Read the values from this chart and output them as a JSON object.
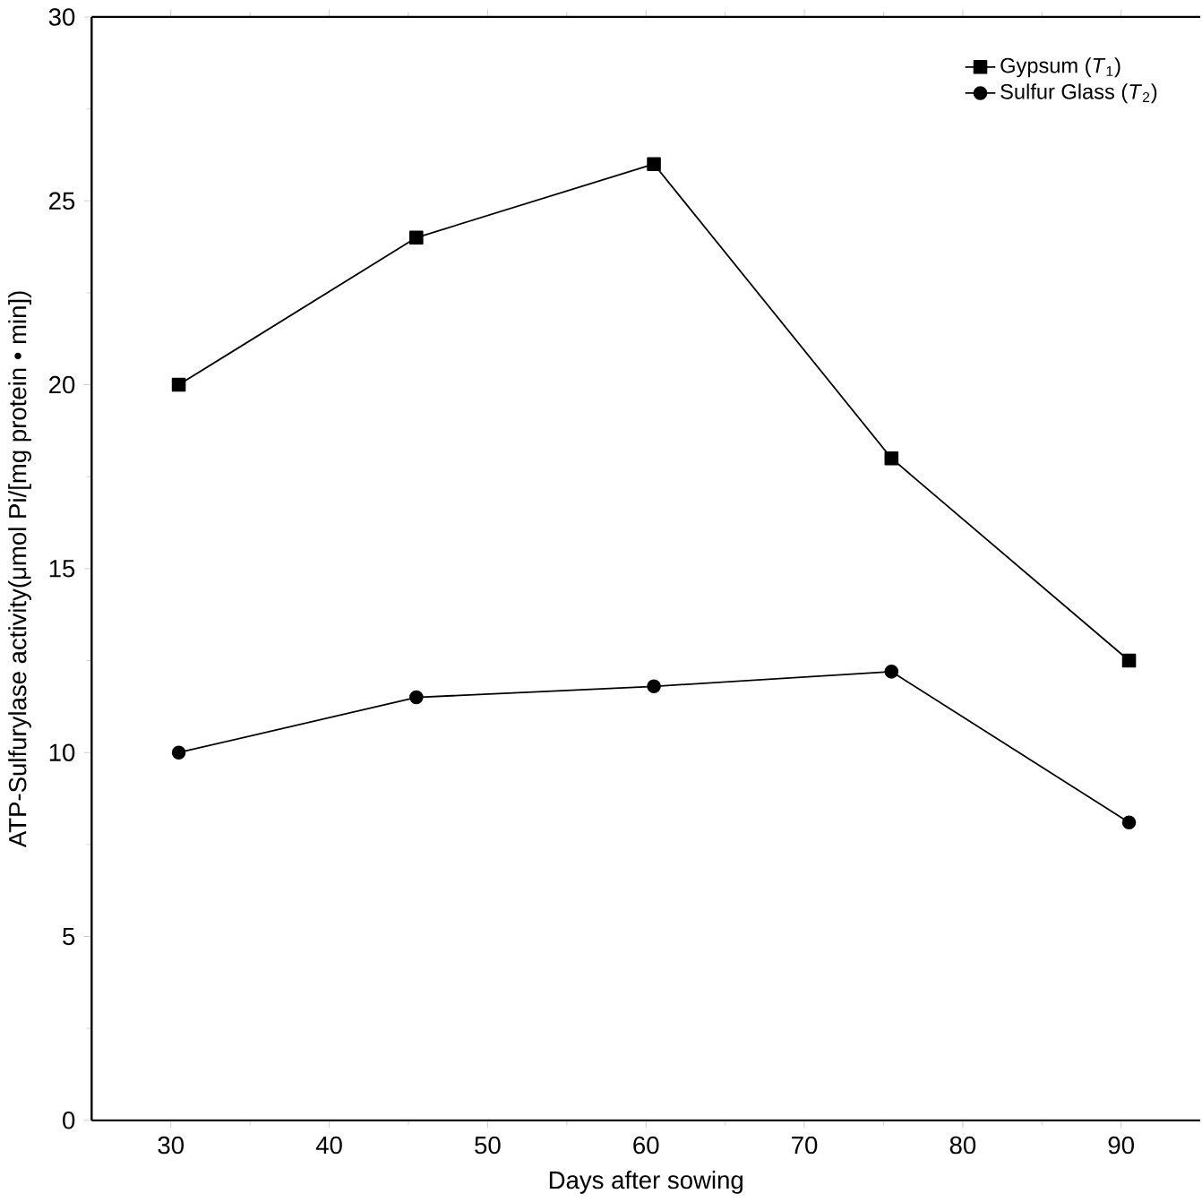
{
  "chart_data": {
    "type": "line",
    "xlabel": "Days after sowing",
    "ylabel": "ATP-Sulfurylase activity(μmol Pi/[mg protein • min])",
    "x": [
      30.5,
      45.5,
      60.5,
      75.5,
      90.5
    ],
    "series": [
      {
        "name": "Gypsum (*T*$_{1}$)",
        "color": "#000000",
        "marker": "square",
        "values": [
          20,
          24,
          26,
          18,
          12.5
        ]
      },
      {
        "name": "Sulfur Glass (*T*$_{2}$)",
        "color": "#000000",
        "marker": "circle",
        "values": [
          10,
          11.5,
          11.8,
          12.2,
          8.1
        ]
      }
    ],
    "xlim": [
      25,
      95
    ],
    "ylim": [
      0,
      30
    ],
    "xticks": [
      30,
      40,
      50,
      60,
      70,
      80,
      90
    ],
    "yticks": [
      0,
      5,
      10,
      15,
      20,
      25,
      30
    ],
    "legend": "top right",
    "line_style": "solid",
    "grid": false
  }
}
